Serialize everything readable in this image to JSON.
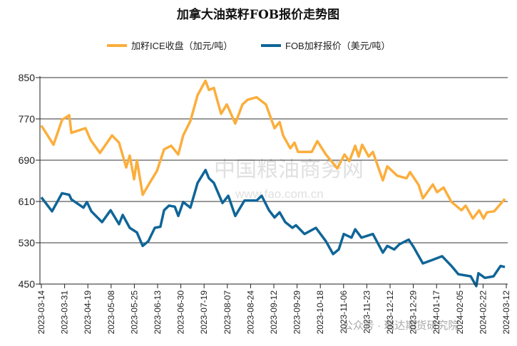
{
  "chart_data": {
    "type": "line",
    "title": "加拿大油菜籽FOB报价走势图",
    "xlabel": "",
    "ylabel": "",
    "ylim": [
      450,
      850
    ],
    "yticks": [
      450,
      530,
      610,
      690,
      770,
      850
    ],
    "grid": "horizontal",
    "legend_position": "top",
    "x_tick_labels": [
      "2023-03-14",
      "2023-03-31",
      "2023-04-19",
      "2023-05-08",
      "2023-05-25",
      "2023-06-13",
      "2023-06-30",
      "2023-07-19",
      "2023-08-07",
      "2023-08-24",
      "2023-09-12",
      "2023-09-29",
      "2023-10-18",
      "2023-11-06",
      "2023-11-23",
      "2023-12-12",
      "2023-12-29",
      "2024-01-17",
      "2024-02-05",
      "2024-02-22",
      "2024-03-12"
    ],
    "x_units_note": "x = position in tick-label index units (0 = 2023-03-14, 20 = 2024-03-12)",
    "series": [
      {
        "name": "加籽ICE收盘（加元/吨）",
        "color": "#FBAE3C",
        "points": [
          [
            0,
            757
          ],
          [
            0.52,
            720
          ],
          [
            0.89,
            768
          ],
          [
            1.2,
            777
          ],
          [
            1.29,
            743
          ],
          [
            1.9,
            752
          ],
          [
            2.12,
            729
          ],
          [
            2.52,
            704
          ],
          [
            3.04,
            738
          ],
          [
            3.34,
            724
          ],
          [
            3.65,
            676
          ],
          [
            3.8,
            699
          ],
          [
            3.99,
            653
          ],
          [
            4.11,
            690
          ],
          [
            4.36,
            623
          ],
          [
            4.66,
            646
          ],
          [
            4.97,
            669
          ],
          [
            5.28,
            711
          ],
          [
            5.58,
            718
          ],
          [
            5.89,
            701
          ],
          [
            6.1,
            738
          ],
          [
            6.41,
            766
          ],
          [
            6.72,
            816
          ],
          [
            7.06,
            844
          ],
          [
            7.21,
            826
          ],
          [
            7.42,
            830
          ],
          [
            7.73,
            780
          ],
          [
            7.98,
            798
          ],
          [
            8.34,
            761
          ],
          [
            8.65,
            798
          ],
          [
            8.87,
            807
          ],
          [
            9.26,
            812
          ],
          [
            9.66,
            798
          ],
          [
            10.03,
            752
          ],
          [
            10.25,
            764
          ],
          [
            10.4,
            738
          ],
          [
            10.71,
            713
          ],
          [
            10.89,
            724
          ],
          [
            11.04,
            706
          ],
          [
            11.63,
            706
          ],
          [
            11.87,
            727
          ],
          [
            12.24,
            701
          ],
          [
            12.73,
            674
          ],
          [
            13.04,
            701
          ],
          [
            13.25,
            688
          ],
          [
            13.5,
            718
          ],
          [
            13.65,
            697
          ],
          [
            13.8,
            720
          ],
          [
            14.08,
            697
          ],
          [
            14.26,
            706
          ],
          [
            14.69,
            651
          ],
          [
            14.88,
            678
          ],
          [
            15.31,
            660
          ],
          [
            15.71,
            655
          ],
          [
            15.86,
            667
          ],
          [
            16.23,
            642
          ],
          [
            16.41,
            616
          ],
          [
            16.84,
            643
          ],
          [
            17.02,
            628
          ],
          [
            17.3,
            637
          ],
          [
            17.64,
            609
          ],
          [
            18.07,
            593
          ],
          [
            18.25,
            602
          ],
          [
            18.56,
            577
          ],
          [
            18.83,
            593
          ],
          [
            19.02,
            577
          ],
          [
            19.17,
            589
          ],
          [
            19.48,
            591
          ],
          [
            19.69,
            602
          ],
          [
            19.94,
            615
          ]
        ]
      },
      {
        "name": "FOB加籽报价（美元/吨）",
        "color": "#0F6597",
        "points": [
          [
            0,
            618
          ],
          [
            0.46,
            591
          ],
          [
            0.89,
            626
          ],
          [
            1.2,
            623
          ],
          [
            1.29,
            614
          ],
          [
            1.81,
            598
          ],
          [
            1.96,
            609
          ],
          [
            2.15,
            591
          ],
          [
            2.61,
            570
          ],
          [
            2.98,
            593
          ],
          [
            3.34,
            566
          ],
          [
            3.5,
            584
          ],
          [
            3.8,
            559
          ],
          [
            4.11,
            550
          ],
          [
            4.36,
            524
          ],
          [
            4.6,
            533
          ],
          [
            4.88,
            559
          ],
          [
            5.12,
            561
          ],
          [
            5.28,
            593
          ],
          [
            5.49,
            602
          ],
          [
            5.74,
            600
          ],
          [
            5.89,
            582
          ],
          [
            6.1,
            609
          ],
          [
            6.41,
            598
          ],
          [
            6.72,
            646
          ],
          [
            7.06,
            671
          ],
          [
            7.21,
            655
          ],
          [
            7.42,
            646
          ],
          [
            7.79,
            607
          ],
          [
            8.04,
            621
          ],
          [
            8.34,
            582
          ],
          [
            8.74,
            612
          ],
          [
            9.26,
            612
          ],
          [
            9.48,
            621
          ],
          [
            9.79,
            593
          ],
          [
            10.03,
            579
          ],
          [
            10.25,
            589
          ],
          [
            10.49,
            570
          ],
          [
            10.8,
            559
          ],
          [
            10.95,
            564
          ],
          [
            11.32,
            547
          ],
          [
            11.81,
            559
          ],
          [
            12.24,
            533
          ],
          [
            12.55,
            508
          ],
          [
            12.79,
            517
          ],
          [
            13.01,
            547
          ],
          [
            13.34,
            540
          ],
          [
            13.5,
            556
          ],
          [
            13.77,
            540
          ],
          [
            14.26,
            547
          ],
          [
            14.69,
            511
          ],
          [
            14.88,
            524
          ],
          [
            15.18,
            517
          ],
          [
            15.4,
            527
          ],
          [
            15.8,
            536
          ],
          [
            16.01,
            522
          ],
          [
            16.41,
            490
          ],
          [
            16.84,
            497
          ],
          [
            17.24,
            504
          ],
          [
            17.64,
            485
          ],
          [
            17.94,
            469
          ],
          [
            18.47,
            465
          ],
          [
            18.71,
            446
          ],
          [
            18.8,
            471
          ],
          [
            19.08,
            462
          ],
          [
            19.45,
            465
          ],
          [
            19.75,
            485
          ],
          [
            19.94,
            483
          ]
        ]
      }
    ]
  },
  "watermarks": {
    "site_logo": "中国粮油商务网",
    "site_url": "www.fao.com.cn",
    "wechat": "公众号 · 瑞达期货研究院"
  }
}
